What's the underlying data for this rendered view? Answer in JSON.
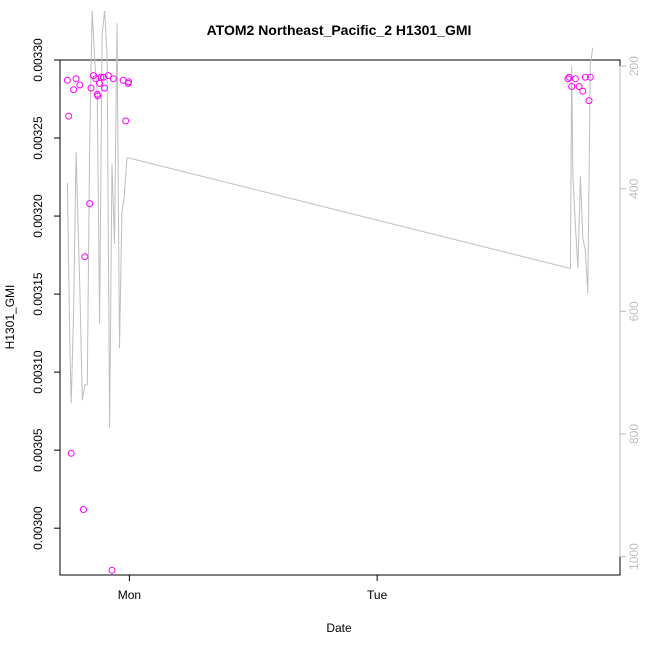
{
  "chart_data": {
    "type": "scatter",
    "title": "ATOM2 Northeast_Pacific_2 H1301_GMI",
    "xlabel": "Date",
    "ylabel": "H1301_GMI",
    "x_ticks": [
      "Mon",
      "Tue"
    ],
    "ylim": [
      0.00297,
      0.0033
    ],
    "y_ticks": [
      "0.00300",
      "0.00305",
      "0.00310",
      "0.00315",
      "0.00320",
      "0.00325",
      "0.00330"
    ],
    "y2lim": [
      1030,
      190
    ],
    "y2_ticks": [
      "200",
      "400",
      "600",
      "800",
      "1000"
    ],
    "colors": {
      "points": "#ff00ff",
      "line": "#bebebe",
      "axis": "#000000",
      "axis_right": "#bebebe"
    },
    "x_domain_days": [
      -0.28,
      1.98
    ],
    "series": [
      {
        "kind": "points",
        "x": [
          -0.25,
          -0.245,
          -0.235,
          -0.225,
          -0.215,
          -0.2,
          -0.185,
          -0.18,
          -0.16,
          -0.155,
          -0.145,
          -0.135,
          -0.13,
          -0.128,
          -0.12,
          -0.115,
          -0.105,
          -0.1,
          -0.085,
          -0.07,
          -0.065,
          -0.025,
          -0.015,
          -0.005,
          -0.003,
          1.77,
          1.775,
          1.785,
          1.8,
          1.815,
          1.83,
          1.84,
          1.855,
          1.86
        ],
        "y": [
          0.003287,
          0.003264,
          0.003048,
          0.003281,
          0.003288,
          0.003284,
          0.003012,
          0.003174,
          0.003208,
          0.003282,
          0.00329,
          0.003288,
          0.003278,
          0.003277,
          0.003285,
          0.003289,
          0.003289,
          0.003282,
          0.00329,
          0.002973,
          0.003288,
          0.003287,
          0.003261,
          0.003285,
          0.003286,
          0.003288,
          0.003289,
          0.003283,
          0.003288,
          0.003283,
          0.00328,
          0.003289,
          0.003274,
          0.003289
        ]
      },
      {
        "kind": "line",
        "x": [
          -0.25,
          -0.24,
          -0.235,
          -0.225,
          -0.215,
          -0.2,
          -0.19,
          -0.18,
          -0.17,
          -0.16,
          -0.15,
          -0.14,
          -0.13,
          -0.12,
          -0.11,
          -0.1,
          -0.09,
          -0.08,
          -0.07,
          -0.06,
          -0.05,
          -0.04,
          -0.03,
          -0.02,
          -0.01,
          0.0,
          1.78,
          1.785,
          1.79,
          1.8,
          1.81,
          1.82,
          1.83,
          1.84,
          1.85,
          1.86,
          1.87
        ],
        "y": [
          390,
          660,
          750,
          600,
          340,
          560,
          745,
          720,
          720,
          320,
          110,
          190,
          240,
          620,
          150,
          110,
          180,
          790,
          360,
          490,
          130,
          660,
          440,
          410,
          350,
          350,
          530,
          200,
          380,
          460,
          530,
          380,
          480,
          500,
          570,
          200,
          170
        ]
      }
    ]
  }
}
